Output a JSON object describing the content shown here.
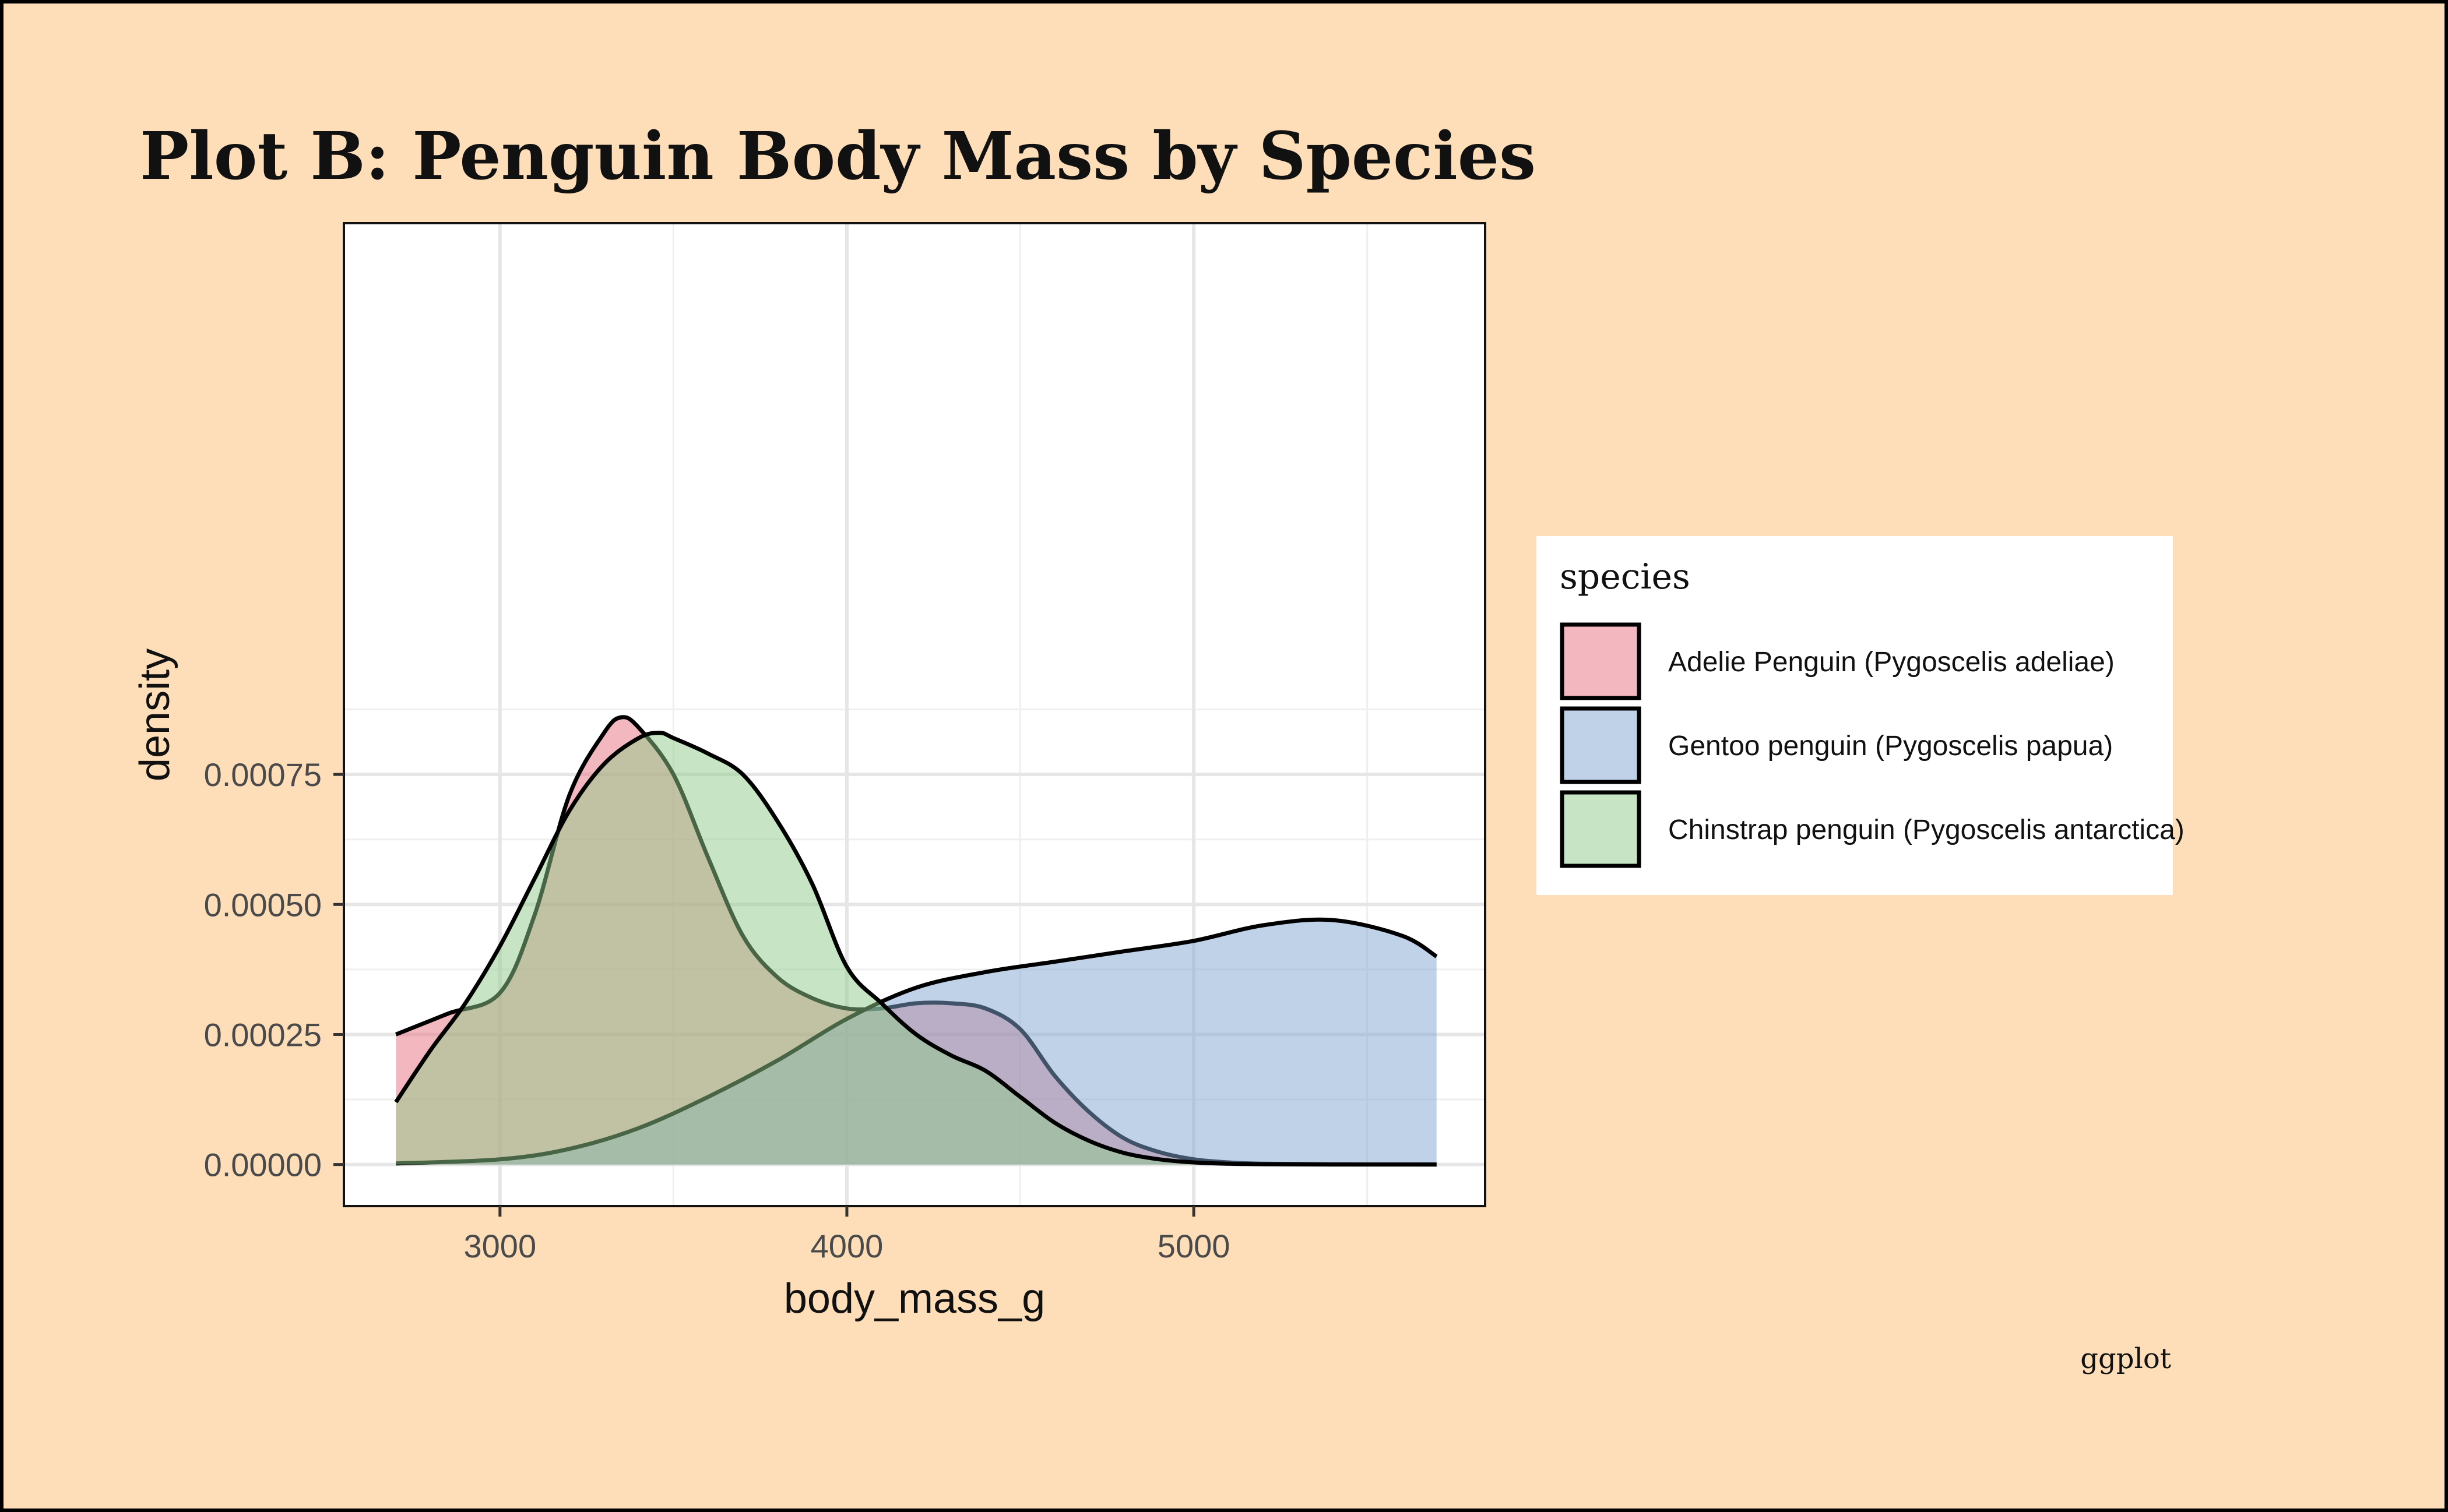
{
  "colors": {
    "background": "#FDDEB9",
    "border": "#000000",
    "panel": "#FFFFFF",
    "grid": "#E6E6E6",
    "gridMinor": "#EFEFEF"
  },
  "chart_data": {
    "type": "area",
    "title": "Plot B: Penguin Body Mass by Species",
    "xlabel": "body_mass_g",
    "ylabel": "density",
    "xlim": [
      2550,
      5840
    ],
    "ylim": [
      -8e-05,
      0.00181
    ],
    "x_ticks": [
      3000,
      4000,
      5000
    ],
    "x_tick_labels": [
      "3000",
      "4000",
      "5000"
    ],
    "y_ticks": [
      0,
      0.00025,
      0.0005,
      0.00075
    ],
    "y_tick_labels": [
      "0.00000",
      "0.00025",
      "0.00050",
      "0.00075"
    ],
    "grid": true,
    "legend_title": "species",
    "legend_position": "right",
    "caption": "ggplot",
    "series": [
      {
        "name": "Adelie Penguin (Pygoscelis adeliae)",
        "color": "#E8707F",
        "x": [
          2700,
          2850,
          3000,
          3100,
          3200,
          3300,
          3350,
          3400,
          3500,
          3600,
          3700,
          3800,
          3900,
          4000,
          4100,
          4200,
          4300,
          4400,
          4500,
          4600,
          4700,
          4800,
          4900,
          5000,
          5100,
          5200,
          5400,
          5700
        ],
        "values": [
          0.00025,
          0.00029,
          0.00033,
          0.00048,
          0.00071,
          0.00083,
          0.00086,
          0.00084,
          0.00075,
          0.00059,
          0.00044,
          0.00036,
          0.00032,
          0.0003,
          0.0003,
          0.00031,
          0.00031,
          0.0003,
          0.00026,
          0.00017,
          0.0001,
          5e-05,
          2.4e-05,
          1e-05,
          4e-06,
          1.5e-06,
          3e-07,
          0
        ]
      },
      {
        "name": "Gentoo penguin (Pygoscelis papua)",
        "color": "#82A6D0",
        "x": [
          2700,
          3000,
          3200,
          3400,
          3600,
          3800,
          4000,
          4200,
          4400,
          4600,
          4800,
          5000,
          5200,
          5400,
          5600,
          5700
        ],
        "values": [
          2e-06,
          1e-05,
          3e-05,
          7e-05,
          0.00013,
          0.0002,
          0.00028,
          0.00034,
          0.00037,
          0.00039,
          0.00041,
          0.00043,
          0.00046,
          0.00047,
          0.00044,
          0.0004
        ]
      },
      {
        "name": "Chinstrap penguin (Pygoscelis antarctica)",
        "color": "#8FCB8A",
        "x": [
          2700,
          2800,
          2900,
          3000,
          3100,
          3200,
          3300,
          3400,
          3460,
          3500,
          3600,
          3700,
          3800,
          3900,
          4000,
          4100,
          4200,
          4300,
          4400,
          4500,
          4600,
          4700,
          4800,
          4900,
          5000,
          5100,
          5200,
          5400,
          5700
        ],
        "values": [
          0.00012,
          0.00022,
          0.00031,
          0.00042,
          0.00055,
          0.00068,
          0.00077,
          0.00082,
          0.00083,
          0.00082,
          0.00079,
          0.00075,
          0.00066,
          0.00054,
          0.00038,
          0.00031,
          0.00025,
          0.00021,
          0.00018,
          0.00013,
          8e-05,
          4.5e-05,
          2.2e-05,
          1e-05,
          4e-06,
          1.5e-06,
          5e-07,
          0,
          0
        ]
      }
    ]
  }
}
